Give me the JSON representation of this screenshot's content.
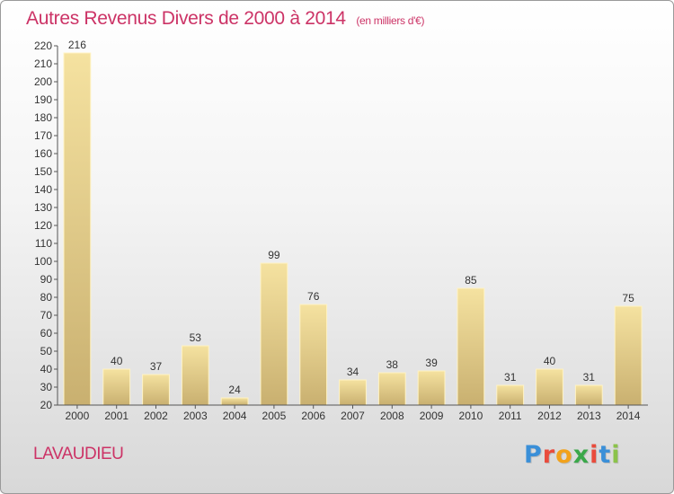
{
  "header": {
    "title": "Autres Revenus Divers de 2000 à 2014",
    "unit": "(en milliers d'€)"
  },
  "footer": {
    "location": "LAVAUDIEU",
    "brand": "Proxiti",
    "brand_colors": [
      "#3a8fd8",
      "#e94b3c",
      "#f2a21b",
      "#3aa84a",
      "#e94b3c",
      "#3a8fd8",
      "#8bc34a"
    ]
  },
  "colors": {
    "title": "#cc3366",
    "bar_light": "#f5e2a0",
    "bar_dark": "#c9b070",
    "bar_edge": "#fff3c4"
  },
  "chart_data": {
    "type": "bar",
    "categories": [
      "2000",
      "2001",
      "2002",
      "2003",
      "2004",
      "2005",
      "2006",
      "2007",
      "2008",
      "2009",
      "2010",
      "2011",
      "2012",
      "2013",
      "2014"
    ],
    "values": [
      216,
      40,
      37,
      53,
      24,
      99,
      76,
      34,
      38,
      39,
      85,
      31,
      40,
      31,
      75
    ],
    "title": "Autres Revenus Divers de 2000 à 2014",
    "xlabel": "",
    "ylabel": "",
    "ylim": [
      20,
      220
    ],
    "yticks": [
      20,
      30,
      40,
      50,
      60,
      70,
      80,
      90,
      100,
      110,
      120,
      130,
      140,
      150,
      160,
      170,
      180,
      190,
      200,
      210,
      220
    ],
    "grid": false,
    "legend": "none"
  }
}
